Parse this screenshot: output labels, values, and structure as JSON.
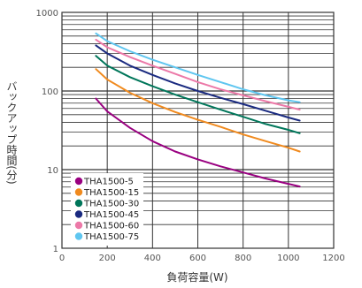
{
  "chart_data": {
    "type": "line",
    "title": "",
    "xlabel": "負荷容量(W)",
    "ylabel": "バックアップ時間(分)",
    "xlim": [
      0,
      1200
    ],
    "ylim": [
      1,
      1000
    ],
    "y_scale": "log",
    "grid": true,
    "legend_position": "bottom-left",
    "x_ticks": [
      "0",
      "200",
      "400",
      "600",
      "800",
      "1000",
      "1200"
    ],
    "y_ticks": [
      "1",
      "10",
      "100",
      "1000"
    ],
    "series": [
      {
        "name": "THA1500-5",
        "color": "#990080",
        "x": [
          150,
          200,
          300,
          400,
          500,
          600,
          700,
          800,
          900,
          1000,
          1050
        ],
        "y": [
          80,
          55,
          34,
          23,
          17,
          13.5,
          11,
          9.2,
          7.7,
          6.6,
          6.1
        ]
      },
      {
        "name": "THA1500-15",
        "color": "#f08a1e",
        "x": [
          150,
          200,
          300,
          400,
          500,
          600,
          700,
          800,
          900,
          1000,
          1050
        ],
        "y": [
          190,
          140,
          95,
          70,
          54,
          43,
          35,
          28,
          23,
          19,
          17
        ]
      },
      {
        "name": "THA1500-30",
        "color": "#00765a",
        "x": [
          150,
          200,
          300,
          400,
          500,
          600,
          700,
          800,
          900,
          1000,
          1050
        ],
        "y": [
          280,
          210,
          150,
          115,
          90,
          72,
          58,
          47,
          38,
          32,
          29
        ]
      },
      {
        "name": "THA1500-45",
        "color": "#1a2a80",
        "x": [
          150,
          200,
          300,
          400,
          500,
          600,
          700,
          800,
          900,
          1000,
          1050
        ],
        "y": [
          380,
          300,
          210,
          160,
          125,
          100,
          82,
          68,
          56,
          46,
          42
        ]
      },
      {
        "name": "THA1500-60",
        "color": "#ec79a8",
        "x": [
          150,
          200,
          300,
          400,
          500,
          600,
          700,
          800,
          900,
          1000,
          1050
        ],
        "y": [
          450,
          360,
          270,
          210,
          165,
          130,
          105,
          88,
          74,
          63,
          58
        ]
      },
      {
        "name": "THA1500-75",
        "color": "#5fc6f0",
        "x": [
          150,
          200,
          300,
          400,
          500,
          600,
          700,
          800,
          900,
          1000,
          1050
        ],
        "y": [
          540,
          430,
          320,
          250,
          200,
          160,
          130,
          105,
          88,
          76,
          72
        ]
      }
    ]
  }
}
